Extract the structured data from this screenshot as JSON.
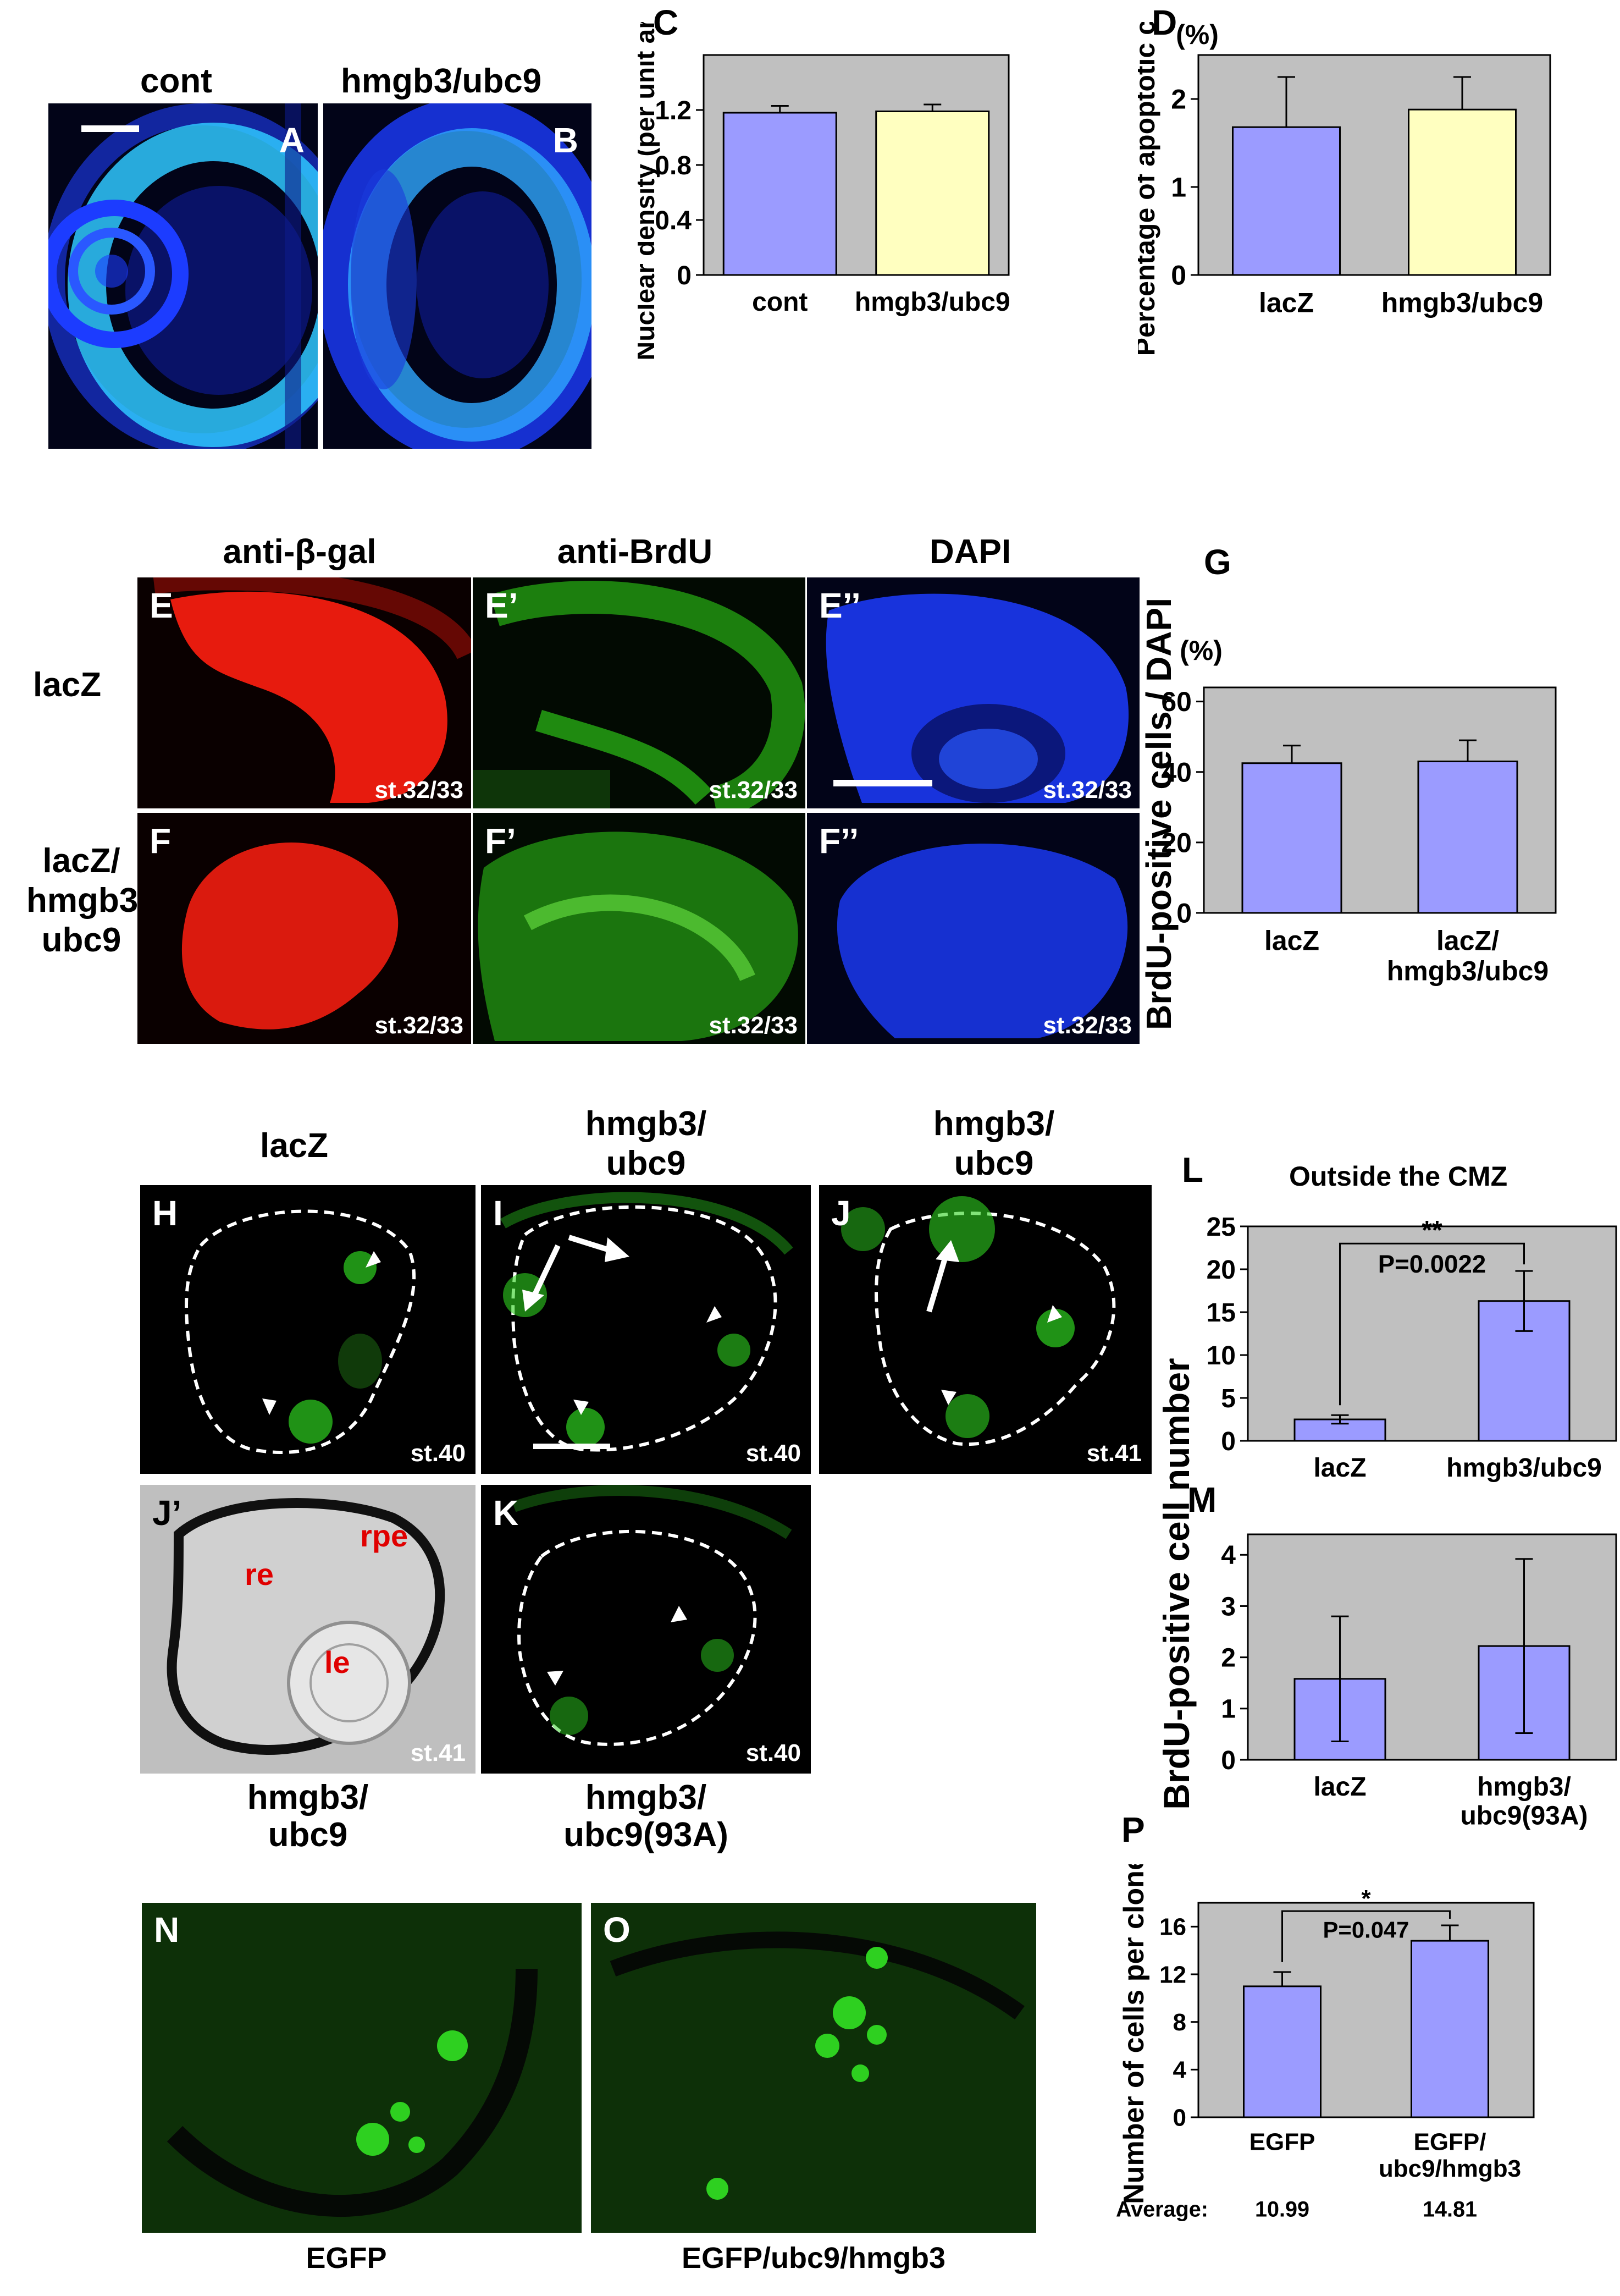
{
  "colors": {
    "dapi_blue": "#1c3cff",
    "dapi_cyan": "#2fc8ff",
    "gal_red": "#ff1e10",
    "brdu_green": "#33e01a",
    "egfp_green": "#2ed020",
    "bar_purple": "#9b9bff",
    "bar_yellow": "#ffffc0",
    "plot_bg": "#c0c0c0"
  },
  "panels": {
    "A": {
      "letter": "A",
      "title": "cont"
    },
    "B": {
      "letter": "B",
      "title": "hmgb3/ubc9"
    },
    "E": {
      "letter": "E",
      "stage": "st.32/33"
    },
    "E1": {
      "letter": "E’",
      "stage": "st.32/33"
    },
    "E2": {
      "letter": "E’’",
      "stage": "st.32/33"
    },
    "F": {
      "letter": "F",
      "stage": "st.32/33"
    },
    "F1": {
      "letter": "F’",
      "stage": "st.32/33"
    },
    "F2": {
      "letter": "F’’",
      "stage": "st.32/33"
    },
    "EF_columns": [
      "anti-β-gal",
      "anti-BrdU",
      "DAPI"
    ],
    "EF_rows": {
      "row1": "lacZ",
      "row2_l1": "lacZ/",
      "row2_l2": "hmgb3/",
      "row2_l3": "ubc9"
    },
    "H": {
      "letter": "H",
      "title": "lacZ",
      "stage": "st.40"
    },
    "I": {
      "letter": "I",
      "title_l1": "hmgb3/",
      "title_l2": "ubc9",
      "stage": "st.40"
    },
    "J": {
      "letter": "J",
      "title_l1": "hmgb3/",
      "title_l2": "ubc9",
      "stage": "st.41"
    },
    "J1": {
      "letter": "J’",
      "stage": "st.41",
      "tag_re": "re",
      "tag_rpe": "rpe",
      "tag_le": "le",
      "caption_l1": "hmgb3/",
      "caption_l2": "ubc9"
    },
    "K": {
      "letter": "K",
      "stage": "st.40",
      "caption_l1": "hmgb3/",
      "caption_l2": "ubc9(93A)"
    },
    "N": {
      "letter": "N",
      "caption": "EGFP"
    },
    "O": {
      "letter": "O",
      "caption": "EGFP/ubc9/hmgb3"
    }
  },
  "chart_data": [
    {
      "id": "C",
      "letter": "C",
      "type": "bar",
      "categories": [
        "cont",
        "hmgb3/ubc9"
      ],
      "values": [
        1.18,
        1.19
      ],
      "errors": [
        0.05,
        0.05
      ],
      "ylabel": "Nuclear density (per unit area)",
      "ylim": [
        0,
        1.6
      ],
      "yticks": [
        "0",
        "0.4",
        "0.8",
        "1.2"
      ],
      "ytick_values": [
        0,
        0.4,
        0.8,
        1.2
      ]
    },
    {
      "id": "D",
      "letter": "D",
      "type": "bar",
      "categories": [
        "lacZ",
        "hmgb3/ubc9"
      ],
      "values": [
        1.68,
        1.88
      ],
      "errors": [
        0.57,
        0.37
      ],
      "ylabel": "Percentage of apoptotic cells",
      "unit": "(%)",
      "ylim": [
        0,
        2.5
      ],
      "yticks": [
        "0",
        "1",
        "2"
      ],
      "ytick_values": [
        0,
        1,
        2
      ]
    },
    {
      "id": "G",
      "letter": "G",
      "type": "bar",
      "categories_l1": [
        "lacZ",
        "lacZ/"
      ],
      "categories_l2": [
        "",
        "hmgb3/ubc9"
      ],
      "values": [
        42.5,
        43
      ],
      "errors": [
        5,
        6
      ],
      "ylabel": "BrdU-positive cells / DAPI",
      "unit": "(%)",
      "ylim": [
        0,
        64
      ],
      "yticks": [
        "0",
        "20",
        "40",
        "60"
      ],
      "ytick_values": [
        0,
        20,
        40,
        60
      ]
    },
    {
      "id": "L",
      "letter": "L",
      "type": "bar",
      "title": "Outside the CMZ",
      "categories": [
        "lacZ",
        "hmgb3/ubc9"
      ],
      "values": [
        2.5,
        16.3
      ],
      "errors": [
        0.5,
        3.5
      ],
      "significance": "**",
      "pvalue": "P=0.0022",
      "ylim": [
        0,
        25
      ],
      "yticks": [
        "0",
        "5",
        "10",
        "15",
        "20",
        "25"
      ],
      "ytick_values": [
        0,
        5,
        10,
        15,
        20,
        25
      ]
    },
    {
      "id": "M",
      "letter": "M",
      "type": "bar",
      "categories_l1": [
        "lacZ",
        "hmgb3/"
      ],
      "categories_l2": [
        "",
        "ubc9(93A)"
      ],
      "values": [
        1.58,
        2.22
      ],
      "errors": [
        1.22,
        1.7
      ],
      "ylim": [
        0,
        4.4
      ],
      "yticks": [
        "0",
        "1",
        "2",
        "3",
        "4"
      ],
      "ytick_values": [
        0,
        1,
        2,
        3,
        4
      ]
    },
    {
      "id": "P",
      "letter": "P",
      "type": "bar",
      "categories_l1": [
        "EGFP",
        "EGFP/"
      ],
      "categories_l2": [
        "",
        "ubc9/hmgb3"
      ],
      "values": [
        10.99,
        14.81
      ],
      "errors": [
        1.2,
        1.3
      ],
      "significance": "*",
      "pvalue": "P=0.047",
      "ylabel": "Number of cells per clone",
      "ylim": [
        0,
        18
      ],
      "yticks": [
        "0",
        "4",
        "8",
        "12",
        "16"
      ],
      "ytick_values": [
        0,
        4,
        8,
        12,
        16
      ],
      "average_label": "Average:",
      "averages": [
        "10.99",
        "14.81"
      ]
    }
  ],
  "shared_ylabel_LM": "BrdU-positive cell number"
}
